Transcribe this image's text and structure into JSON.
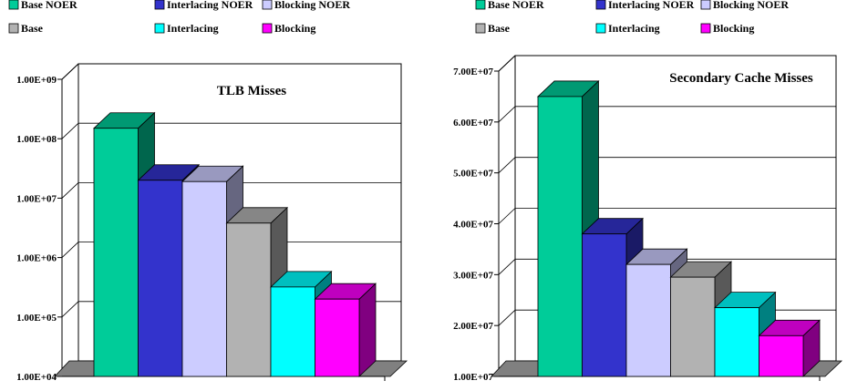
{
  "chart_data": [
    {
      "type": "bar",
      "title": "TLB Misses",
      "scale": "log",
      "ylim": [
        10000,
        1000000000
      ],
      "yticks": [
        "1.00E+04",
        "1.00E+05",
        "1.00E+06",
        "1.00E+07",
        "1.00E+08",
        "1.00E+09"
      ],
      "grid": true,
      "legend_position": "top",
      "series": [
        {
          "name": "Base NOER",
          "value": 150000000,
          "color": "#00cc99"
        },
        {
          "name": "Interlacing NOER",
          "value": 20000000,
          "color": "#3333cc"
        },
        {
          "name": "Blocking NOER",
          "value": 19000000,
          "color": "#ccccff"
        },
        {
          "name": "Base",
          "value": 3800000,
          "color": "#b2b2b2"
        },
        {
          "name": "Interlacing",
          "value": 320000,
          "color": "#00ffff"
        },
        {
          "name": "Blocking",
          "value": 200000,
          "color": "#ff00ff"
        }
      ]
    },
    {
      "type": "bar",
      "title": "Secondary Cache Misses",
      "scale": "linear",
      "ylim": [
        10000000,
        70000000
      ],
      "yticks": [
        "1.00E+07",
        "2.00E+07",
        "3.00E+07",
        "4.00E+07",
        "5.00E+07",
        "6.00E+07",
        "7.00E+07"
      ],
      "grid": true,
      "legend_position": "top",
      "series": [
        {
          "name": "Base NOER",
          "value": 65000000,
          "color": "#00cc99"
        },
        {
          "name": "Interlacing NOER",
          "value": 38000000,
          "color": "#3333cc"
        },
        {
          "name": "Blocking NOER",
          "value": 32000000,
          "color": "#ccccff"
        },
        {
          "name": "Base",
          "value": 29500000,
          "color": "#b2b2b2"
        },
        {
          "name": "Interlacing",
          "value": 23500000,
          "color": "#00ffff"
        },
        {
          "name": "Blocking",
          "value": 18000000,
          "color": "#ff00ff"
        }
      ]
    }
  ]
}
